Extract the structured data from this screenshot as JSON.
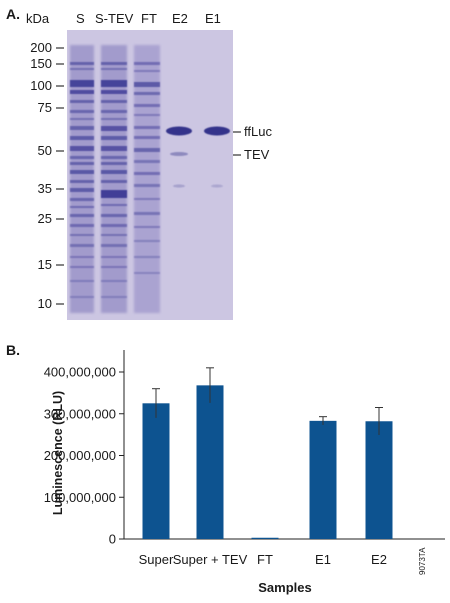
{
  "panel_a": {
    "label": "A.",
    "unit": "kDa",
    "lanes": [
      "S",
      "S-TEV",
      "FT",
      "E2",
      "E1"
    ],
    "markers": [
      "200",
      "150",
      "100",
      "75",
      "50",
      "35",
      "25",
      "15",
      "10"
    ],
    "band_labels": [
      "ffLuc",
      "TEV"
    ]
  },
  "panel_b": {
    "label": "B.",
    "bar_color": "#0d5390",
    "ylabel": "Luminescence (RLU)",
    "xlabel": "Samples",
    "figure_id": "9073TA"
  },
  "chart_data": {
    "type": "bar",
    "categories": [
      "Super",
      "Super + TEV",
      "FT",
      "E1",
      "E2"
    ],
    "values": [
      325000000,
      368000000,
      3000000,
      283000000,
      282000000
    ],
    "error": [
      35000000,
      42000000,
      0,
      10000000,
      33000000
    ],
    "ylim": [
      0,
      400000000
    ],
    "yticks": [
      0,
      100000000,
      200000000,
      300000000,
      400000000
    ],
    "ytick_labels": [
      "0",
      "100,000,000",
      "200,000,000",
      "300,000,000",
      "400,000,000"
    ],
    "title": "",
    "xlabel": "Samples",
    "ylabel": "Luminescence (RLU)",
    "grid": false
  }
}
